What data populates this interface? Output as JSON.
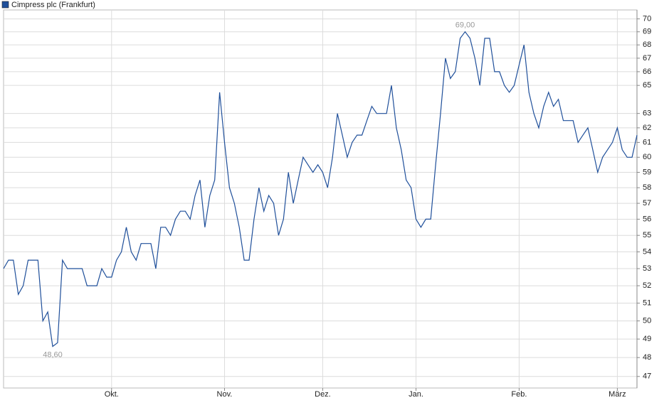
{
  "chart_data": {
    "type": "line",
    "categories": [
      null,
      null,
      null,
      null,
      null,
      null,
      null,
      null,
      null,
      null,
      null,
      null,
      null,
      null,
      null,
      null,
      null,
      null,
      null,
      null,
      null,
      null,
      "Okt.",
      null,
      null,
      null,
      null,
      null,
      null,
      null,
      null,
      null,
      null,
      null,
      null,
      null,
      null,
      null,
      null,
      null,
      null,
      null,
      null,
      null,
      null,
      "Nov.",
      null,
      null,
      null,
      null,
      null,
      null,
      null,
      null,
      null,
      null,
      null,
      null,
      null,
      null,
      null,
      null,
      null,
      null,
      null,
      "Dez.",
      null,
      null,
      null,
      null,
      null,
      null,
      null,
      null,
      null,
      null,
      null,
      null,
      null,
      null,
      null,
      null,
      null,
      null,
      "Jan.",
      null,
      null,
      null,
      null,
      null,
      null,
      null,
      null,
      null,
      null,
      null,
      null,
      null,
      null,
      null,
      null,
      null,
      null,
      null,
      null,
      "Feb.",
      null,
      null,
      null,
      null,
      null,
      null,
      null,
      null,
      null,
      null,
      null,
      null,
      null,
      null,
      null,
      null,
      null,
      null,
      null,
      "März",
      null,
      null,
      null,
      null
    ],
    "series": [
      {
        "name": "Cimpress plc (Frankfurt)",
        "color": "#1f4f9a",
        "values": [
          53,
          53.5,
          53.5,
          51.5,
          52,
          53.5,
          53.5,
          53.5,
          50,
          50.5,
          48.6,
          48.8,
          53.5,
          53,
          53,
          53,
          53,
          52,
          52,
          52,
          53,
          52.5,
          52.5,
          53.5,
          54,
          55.5,
          54,
          53.5,
          54.5,
          54.5,
          54.5,
          53,
          55.5,
          55.5,
          55,
          56,
          56.5,
          56.5,
          56,
          57.5,
          58.5,
          55.5,
          57.5,
          58.5,
          64.5,
          61,
          58,
          57,
          55.5,
          53.5,
          53.5,
          56,
          58,
          56.5,
          57.5,
          57,
          55,
          56,
          59,
          57,
          58.5,
          60,
          59.5,
          59,
          59.5,
          59,
          58,
          60,
          63,
          61.5,
          60,
          61,
          61.5,
          61.5,
          62.5,
          63.5,
          63,
          63,
          63,
          65,
          62,
          60.5,
          58.5,
          58,
          56,
          55.5,
          56,
          56,
          59.5,
          63,
          67,
          65.5,
          66,
          68.5,
          69,
          68.5,
          67,
          65,
          68.5,
          68.5,
          66,
          66,
          65,
          64.5,
          65,
          66.5,
          68,
          64.5,
          63,
          62,
          63.5,
          64.5,
          63.5,
          64,
          62.5,
          62.5,
          62.5,
          61,
          61.5,
          62,
          60.5,
          59,
          60,
          60.5,
          61,
          62,
          60.5,
          60,
          60,
          61.5
        ],
        "value_labels": [
          null,
          null,
          null,
          null,
          null,
          null,
          null,
          null,
          null,
          null,
          "48,60",
          null,
          null,
          null,
          null,
          null,
          null,
          null,
          null,
          null,
          null,
          null,
          null,
          null,
          null,
          null,
          null,
          null,
          null,
          null,
          null,
          null,
          null,
          null,
          null,
          null,
          null,
          null,
          null,
          null,
          null,
          null,
          null,
          null,
          null,
          null,
          null,
          null,
          null,
          null,
          null,
          null,
          null,
          null,
          null,
          null,
          null,
          null,
          null,
          null,
          null,
          null,
          null,
          null,
          null,
          null,
          null,
          null,
          null,
          null,
          null,
          null,
          null,
          null,
          null,
          null,
          null,
          null,
          null,
          null,
          null,
          null,
          null,
          null,
          null,
          null,
          null,
          null,
          null,
          null,
          null,
          null,
          null,
          null,
          "69,00",
          null,
          null,
          null,
          null,
          null,
          null,
          null,
          null,
          null,
          null,
          null,
          null,
          null,
          null,
          null,
          null,
          null,
          null,
          null,
          null,
          null,
          null,
          null,
          null,
          null,
          null,
          null,
          null,
          null,
          null,
          null,
          null,
          null,
          null,
          null
        ]
      }
    ],
    "ylim": [
      46.4,
      70.7
    ],
    "log_scale": true,
    "yticks": [
      47,
      48,
      49,
      50,
      51,
      52,
      53,
      54,
      55,
      56,
      57,
      58,
      59,
      60,
      61,
      62,
      63,
      65,
      66,
      67,
      68,
      69,
      70
    ],
    "grid": true
  }
}
